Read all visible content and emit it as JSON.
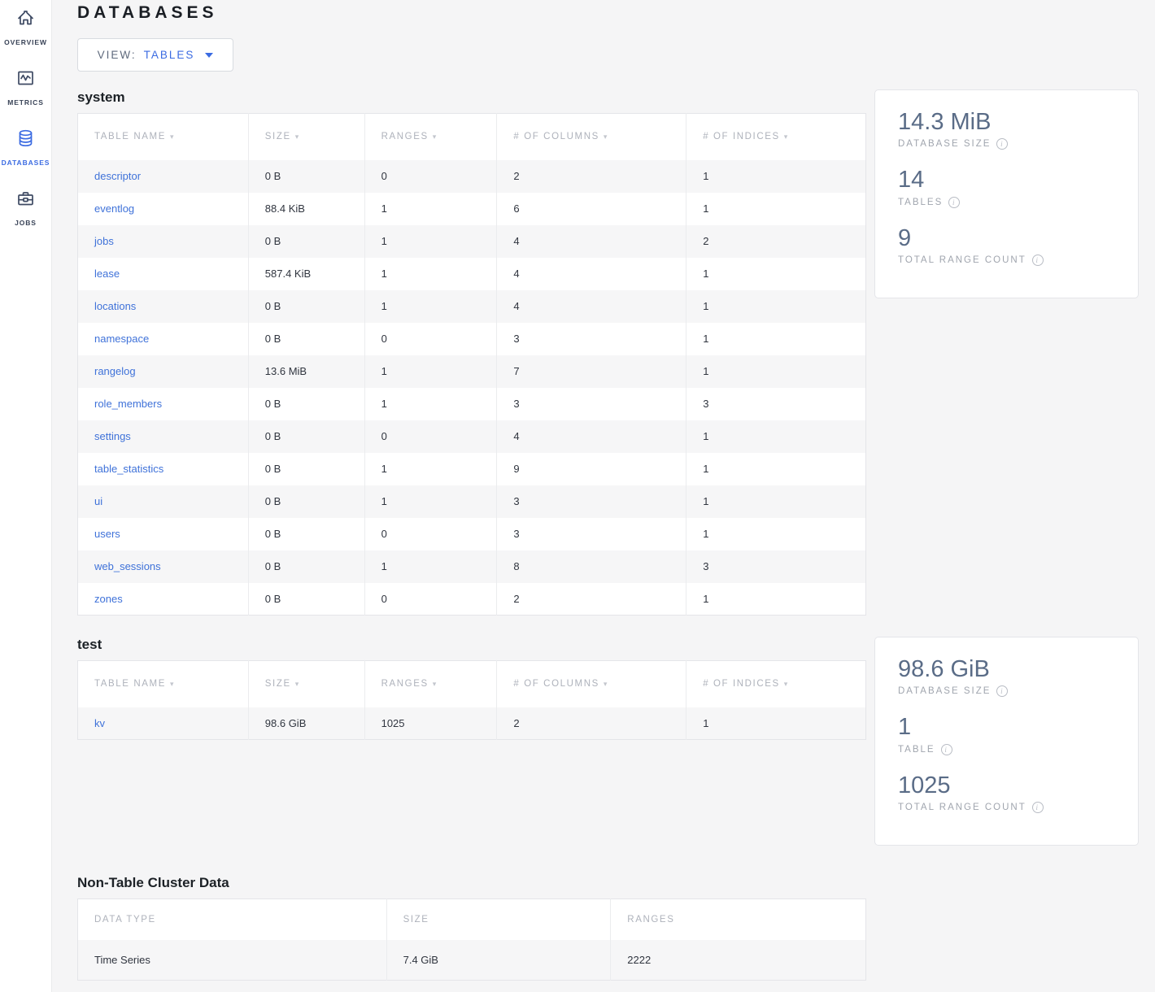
{
  "header": {
    "title": "DATABASES"
  },
  "view_selector": {
    "label": "VIEW:",
    "value": "TABLES"
  },
  "sidebar": {
    "items": [
      {
        "label": "OVERVIEW",
        "icon": "home-icon",
        "active": false
      },
      {
        "label": "METRICS",
        "icon": "metrics-icon",
        "active": false
      },
      {
        "label": "DATABASES",
        "icon": "databases-icon",
        "active": true
      },
      {
        "label": "JOBS",
        "icon": "jobs-icon",
        "active": false
      }
    ]
  },
  "db_columns": [
    "TABLE NAME",
    "SIZE",
    "RANGES",
    "# OF COLUMNS",
    "# OF INDICES"
  ],
  "databases": [
    {
      "name": "system",
      "rows": [
        {
          "table": "descriptor",
          "size": "0 B",
          "ranges": "0",
          "columns": "2",
          "indices": "1"
        },
        {
          "table": "eventlog",
          "size": "88.4 KiB",
          "ranges": "1",
          "columns": "6",
          "indices": "1"
        },
        {
          "table": "jobs",
          "size": "0 B",
          "ranges": "1",
          "columns": "4",
          "indices": "2"
        },
        {
          "table": "lease",
          "size": "587.4 KiB",
          "ranges": "1",
          "columns": "4",
          "indices": "1"
        },
        {
          "table": "locations",
          "size": "0 B",
          "ranges": "1",
          "columns": "4",
          "indices": "1"
        },
        {
          "table": "namespace",
          "size": "0 B",
          "ranges": "0",
          "columns": "3",
          "indices": "1"
        },
        {
          "table": "rangelog",
          "size": "13.6 MiB",
          "ranges": "1",
          "columns": "7",
          "indices": "1"
        },
        {
          "table": "role_members",
          "size": "0 B",
          "ranges": "1",
          "columns": "3",
          "indices": "3"
        },
        {
          "table": "settings",
          "size": "0 B",
          "ranges": "0",
          "columns": "4",
          "indices": "1"
        },
        {
          "table": "table_statistics",
          "size": "0 B",
          "ranges": "1",
          "columns": "9",
          "indices": "1"
        },
        {
          "table": "ui",
          "size": "0 B",
          "ranges": "1",
          "columns": "3",
          "indices": "1"
        },
        {
          "table": "users",
          "size": "0 B",
          "ranges": "0",
          "columns": "3",
          "indices": "1"
        },
        {
          "table": "web_sessions",
          "size": "0 B",
          "ranges": "1",
          "columns": "8",
          "indices": "3"
        },
        {
          "table": "zones",
          "size": "0 B",
          "ranges": "0",
          "columns": "2",
          "indices": "1"
        }
      ],
      "summary": [
        {
          "value": "14.3 MiB",
          "label": "DATABASE SIZE"
        },
        {
          "value": "14",
          "label": "TABLES"
        },
        {
          "value": "9",
          "label": "TOTAL RANGE COUNT"
        }
      ]
    },
    {
      "name": "test",
      "rows": [
        {
          "table": "kv",
          "size": "98.6 GiB",
          "ranges": "1025",
          "columns": "2",
          "indices": "1"
        }
      ],
      "summary": [
        {
          "value": "98.6 GiB",
          "label": "DATABASE SIZE"
        },
        {
          "value": "1",
          "label": "TABLE"
        },
        {
          "value": "1025",
          "label": "TOTAL RANGE COUNT"
        }
      ]
    }
  ],
  "non_table": {
    "title": "Non-Table Cluster Data",
    "columns": [
      "DATA TYPE",
      "SIZE",
      "RANGES"
    ],
    "rows": [
      {
        "type": "Time Series",
        "size": "7.4 GiB",
        "ranges": "2222"
      }
    ]
  },
  "colors": {
    "accent_blue": "#3b6be2",
    "page_bg": "#f5f5f6",
    "link_blue": "#3f72d9",
    "stat_number": "#5a6c87",
    "muted_header": "#aeb2bb",
    "row_alt": "#f6f6f7"
  }
}
